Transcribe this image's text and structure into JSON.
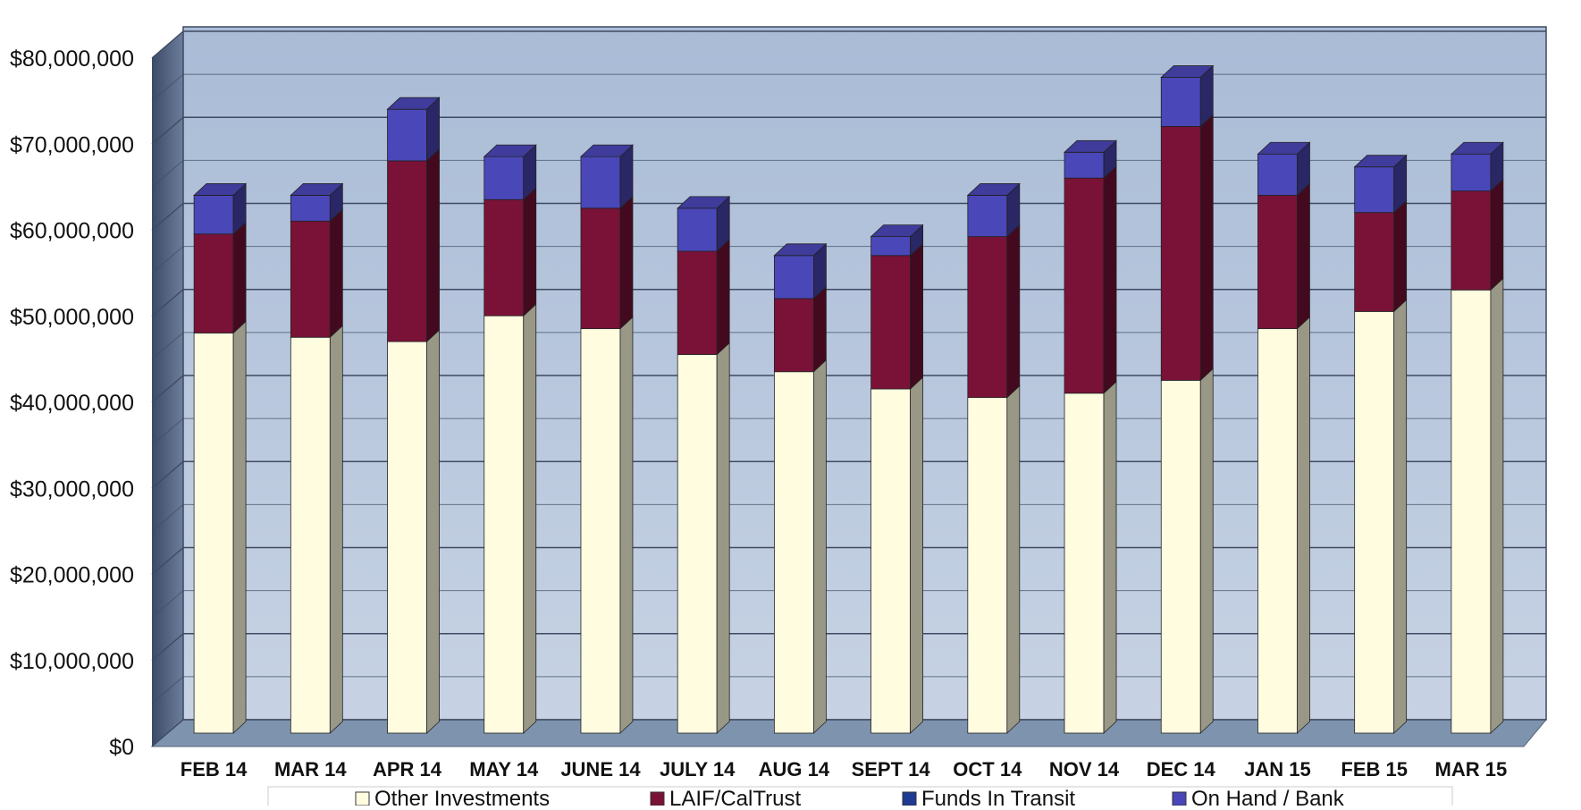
{
  "chart_data": {
    "type": "bar",
    "stacked": true,
    "style": "3d-column",
    "categories": [
      "FEB 14",
      "MAR 14",
      "APR 14",
      "MAY 14",
      "JUNE 14",
      "JULY 14",
      "AUG 14",
      "SEPT 14",
      "OCT 14",
      "NOV 14",
      "DEC 14",
      "JAN 15",
      "FEB 15",
      "MAR 15"
    ],
    "series": [
      {
        "name": "Other Investments",
        "color": "#FFFCE0",
        "values": [
          46500000,
          46000000,
          45500000,
          48500000,
          47000000,
          44000000,
          42000000,
          40000000,
          39000000,
          39500000,
          41000000,
          47000000,
          49000000,
          51500000
        ]
      },
      {
        "name": "LAIF/CalTrust",
        "color": "#7A1238",
        "values": [
          11500000,
          13500000,
          21000000,
          13500000,
          14000000,
          12000000,
          8500000,
          15500000,
          18700000,
          25000000,
          29500000,
          15500000,
          11500000,
          11500000
        ]
      },
      {
        "name": "Funds In Transit",
        "color": "#1F3A93",
        "values": [
          0,
          0,
          0,
          0,
          0,
          0,
          0,
          0,
          0,
          0,
          0,
          0,
          0,
          0
        ]
      },
      {
        "name": "On Hand / Bank",
        "color": "#4A47B8",
        "values": [
          4500000,
          3000000,
          6000000,
          5000000,
          6000000,
          5000000,
          5000000,
          2200000,
          4800000,
          3000000,
          5700000,
          4800000,
          5300000,
          4300000
        ]
      }
    ],
    "ylim": [
      0,
      80000000
    ],
    "ytick_labels": [
      "$0",
      "$10,000,000",
      "$20,000,000",
      "$30,000,000",
      "$40,000,000",
      "$50,000,000",
      "$60,000,000",
      "$70,000,000",
      "$80,000,000"
    ],
    "grid": true,
    "legend_position": "bottom",
    "colors": {
      "wall": "#B3C4DC",
      "grid": "#3F4A62",
      "floor": "#7E93AE",
      "side_wall": "#5C6E8C"
    }
  }
}
